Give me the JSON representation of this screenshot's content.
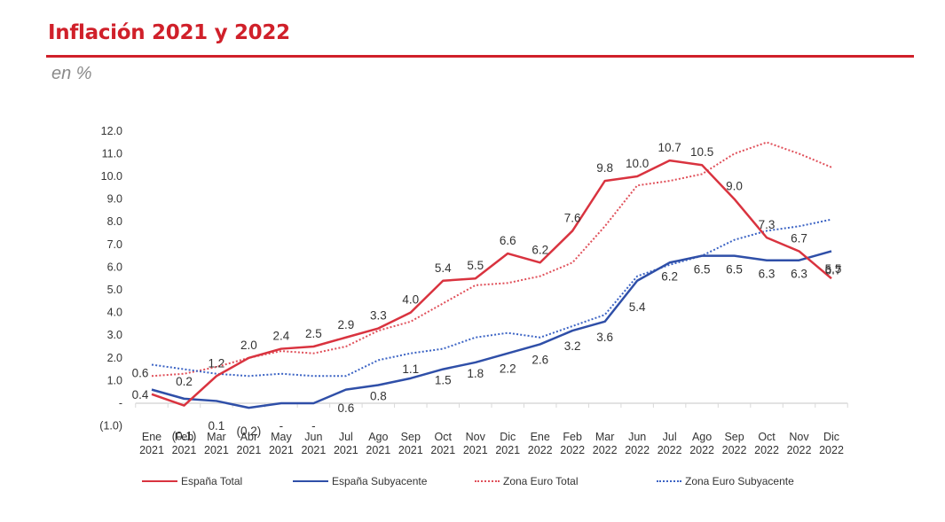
{
  "header": {
    "title": "Inflación 2021 y 2022",
    "subtitle": "en %"
  },
  "colors": {
    "brand_red": "#d0202a",
    "espana_total": "#d9333f",
    "espana_subyacente": "#2f4fa8",
    "zona_euro_total": "#e0505a",
    "zona_euro_subyacente": "#3b63c4"
  },
  "chart_data": {
    "type": "line",
    "title": "Inflación 2021 y 2022",
    "subtitle": "en %",
    "xlabel": "",
    "ylabel": "",
    "ylim": [
      -1,
      12
    ],
    "yticks": [
      -1,
      0,
      1,
      2,
      3,
      4,
      5,
      6,
      7,
      8,
      9,
      10,
      11,
      12
    ],
    "ytick_labels": [
      "(1.0)",
      "-",
      "1.0",
      "2.0",
      "3.0",
      "4.0",
      "5.0",
      "6.0",
      "7.0",
      "8.0",
      "9.0",
      "10.0",
      "11.0",
      "12.0"
    ],
    "grid": false,
    "legend_position": "bottom",
    "categories": [
      [
        "Ene",
        "2021"
      ],
      [
        "Feb",
        "2021"
      ],
      [
        "Mar",
        "2021"
      ],
      [
        "Abr",
        "2021"
      ],
      [
        "May",
        "2021"
      ],
      [
        "Jun",
        "2021"
      ],
      [
        "Jul",
        "2021"
      ],
      [
        "Ago",
        "2021"
      ],
      [
        "Sep",
        "2021"
      ],
      [
        "Oct",
        "2021"
      ],
      [
        "Nov",
        "2021"
      ],
      [
        "Dic",
        "2021"
      ],
      [
        "Ene",
        "2022"
      ],
      [
        "Feb",
        "2022"
      ],
      [
        "Mar",
        "2022"
      ],
      [
        "Jun",
        "2022"
      ],
      [
        "Jul",
        "2022"
      ],
      [
        "Ago",
        "2022"
      ],
      [
        "Sep",
        "2022"
      ],
      [
        "Oct",
        "2022"
      ],
      [
        "Nov",
        "2022"
      ],
      [
        "Dic",
        "2022"
      ]
    ],
    "series": [
      {
        "name": "España Total",
        "style": "solid",
        "color_key": "espana_total",
        "values": [
          0.4,
          -0.1,
          1.2,
          2.0,
          2.4,
          2.5,
          2.9,
          3.3,
          4.0,
          5.4,
          5.5,
          6.6,
          6.2,
          7.6,
          9.8,
          10.0,
          10.7,
          10.5,
          9.0,
          7.3,
          6.7,
          5.5
        ],
        "labels": [
          "0.4",
          "(0.1)",
          "1.2",
          "2.0",
          "2.4",
          "2.5",
          "2.9",
          "3.3",
          "4.0",
          "5.4",
          "5.5",
          "6.6",
          "6.2",
          "7.6",
          "9.8",
          "10.0",
          "10.7",
          "10.5",
          "9.0",
          "7.3",
          "6.7",
          "5.5"
        ]
      },
      {
        "name": "España Subyacente",
        "style": "solid",
        "color_key": "espana_subyacente",
        "values": [
          0.6,
          0.2,
          0.1,
          -0.2,
          0.0,
          0.0,
          0.6,
          0.8,
          1.1,
          1.5,
          1.8,
          2.2,
          2.6,
          3.2,
          3.6,
          5.4,
          6.2,
          6.5,
          6.5,
          6.3,
          6.3,
          6.7
        ],
        "labels": [
          "0.6",
          "0.2",
          "0.1",
          "(0.2)",
          "-",
          "-",
          "0.6",
          "0.8",
          "1.1",
          "1.5",
          "1.8",
          "2.2",
          "2.6",
          "3.2",
          "3.6",
          "5.4",
          "6.2",
          "6.5",
          "6.5",
          "6.3",
          "6.3",
          "6.7"
        ]
      },
      {
        "name": "Zona Euro Total",
        "style": "dotted",
        "color_key": "zona_euro_total",
        "values": [
          1.2,
          1.3,
          1.6,
          2.0,
          2.3,
          2.2,
          2.5,
          3.2,
          3.6,
          4.4,
          5.2,
          5.3,
          5.6,
          6.2,
          7.8,
          9.6,
          9.8,
          10.1,
          11.0,
          11.5,
          11.0,
          10.4
        ]
      },
      {
        "name": "Zona Euro Subyacente",
        "style": "dotted",
        "color_key": "zona_euro_subyacente",
        "values": [
          1.7,
          1.5,
          1.3,
          1.2,
          1.3,
          1.2,
          1.2,
          1.9,
          2.2,
          2.4,
          2.9,
          3.1,
          2.9,
          3.4,
          3.9,
          5.6,
          6.1,
          6.5,
          7.2,
          7.6,
          7.8,
          8.1
        ]
      }
    ]
  }
}
